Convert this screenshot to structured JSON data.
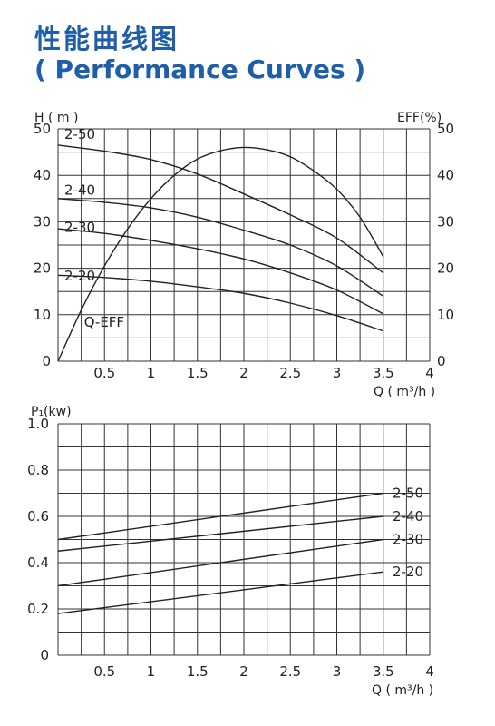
{
  "header": {
    "title_cn": "性能曲线图",
    "title_en": "( Performance Curves )",
    "title_color": "#1f5ea8"
  },
  "chart_data": [
    {
      "type": "line",
      "title": "",
      "xlabel": "Q ( m³/h )",
      "ylabel_left": "H ( m )",
      "ylabel_right": "EFF(%)",
      "xlim": [
        0,
        4
      ],
      "ylim": [
        0,
        50
      ],
      "xticks": [
        "0.5",
        "1",
        "1.5",
        "2",
        "2.5",
        "3",
        "3.5",
        "4"
      ],
      "yticks_left": [
        "0",
        "10",
        "20",
        "30",
        "40",
        "50"
      ],
      "yticks_right": [
        "0",
        "10",
        "20",
        "30",
        "40",
        "50"
      ],
      "grid": true,
      "series": [
        {
          "name": "2-50",
          "points": [
            [
              0,
              46.5
            ],
            [
              0.5,
              45.2
            ],
            [
              1,
              43.4
            ],
            [
              1.5,
              40.3
            ],
            [
              2,
              36
            ],
            [
              2.5,
              31.5
            ],
            [
              3,
              26.5
            ],
            [
              3.5,
              19
            ]
          ]
        },
        {
          "name": "2-40",
          "points": [
            [
              0,
              35
            ],
            [
              0.5,
              34.2
            ],
            [
              1,
              33
            ],
            [
              1.5,
              31
            ],
            [
              2,
              28.2
            ],
            [
              2.5,
              25
            ],
            [
              3,
              20.5
            ],
            [
              3.5,
              14
            ]
          ]
        },
        {
          "name": "2-30",
          "points": [
            [
              0,
              28.5
            ],
            [
              0.5,
              27.5
            ],
            [
              1,
              26
            ],
            [
              1.5,
              24.2
            ],
            [
              2,
              22
            ],
            [
              2.5,
              19
            ],
            [
              3,
              15.3
            ],
            [
              3.5,
              10.2
            ]
          ]
        },
        {
          "name": "2-20",
          "points": [
            [
              0,
              18.5
            ],
            [
              0.5,
              18
            ],
            [
              1,
              17.2
            ],
            [
              1.5,
              16
            ],
            [
              2,
              14.6
            ],
            [
              2.5,
              12.5
            ],
            [
              3,
              9.8
            ],
            [
              3.5,
              6.5
            ]
          ]
        },
        {
          "name": "Q-EFF",
          "points": [
            [
              0,
              0
            ],
            [
              0.25,
              11
            ],
            [
              0.5,
              20.5
            ],
            [
              0.75,
              28.5
            ],
            [
              1,
              35
            ],
            [
              1.25,
              40
            ],
            [
              1.5,
              43.5
            ],
            [
              1.75,
              45.3
            ],
            [
              2,
              46
            ],
            [
              2.25,
              45.5
            ],
            [
              2.5,
              44
            ],
            [
              2.75,
              41
            ],
            [
              3,
              37
            ],
            [
              3.25,
              31
            ],
            [
              3.5,
              22.5
            ]
          ]
        }
      ]
    },
    {
      "type": "line",
      "title": "",
      "xlabel": "Q ( m³/h )",
      "ylabel": "P₁(kw)",
      "xlim": [
        0,
        4
      ],
      "ylim": [
        0,
        1.0
      ],
      "xticks": [
        "0.5",
        "1",
        "1.5",
        "2",
        "2.5",
        "3",
        "3.5",
        "4"
      ],
      "yticks": [
        "0",
        "0.2",
        "0.4",
        "0.6",
        "0.8",
        "1.0"
      ],
      "grid": true,
      "series": [
        {
          "name": "2-50",
          "points": [
            [
              0,
              0.5
            ],
            [
              3.5,
              0.7
            ]
          ]
        },
        {
          "name": "2-40",
          "points": [
            [
              0,
              0.45
            ],
            [
              3.5,
              0.6
            ]
          ]
        },
        {
          "name": "2-30",
          "points": [
            [
              0,
              0.3
            ],
            [
              3.5,
              0.5
            ]
          ]
        },
        {
          "name": "2-20",
          "points": [
            [
              0,
              0.18
            ],
            [
              3.5,
              0.36
            ]
          ]
        }
      ]
    }
  ]
}
